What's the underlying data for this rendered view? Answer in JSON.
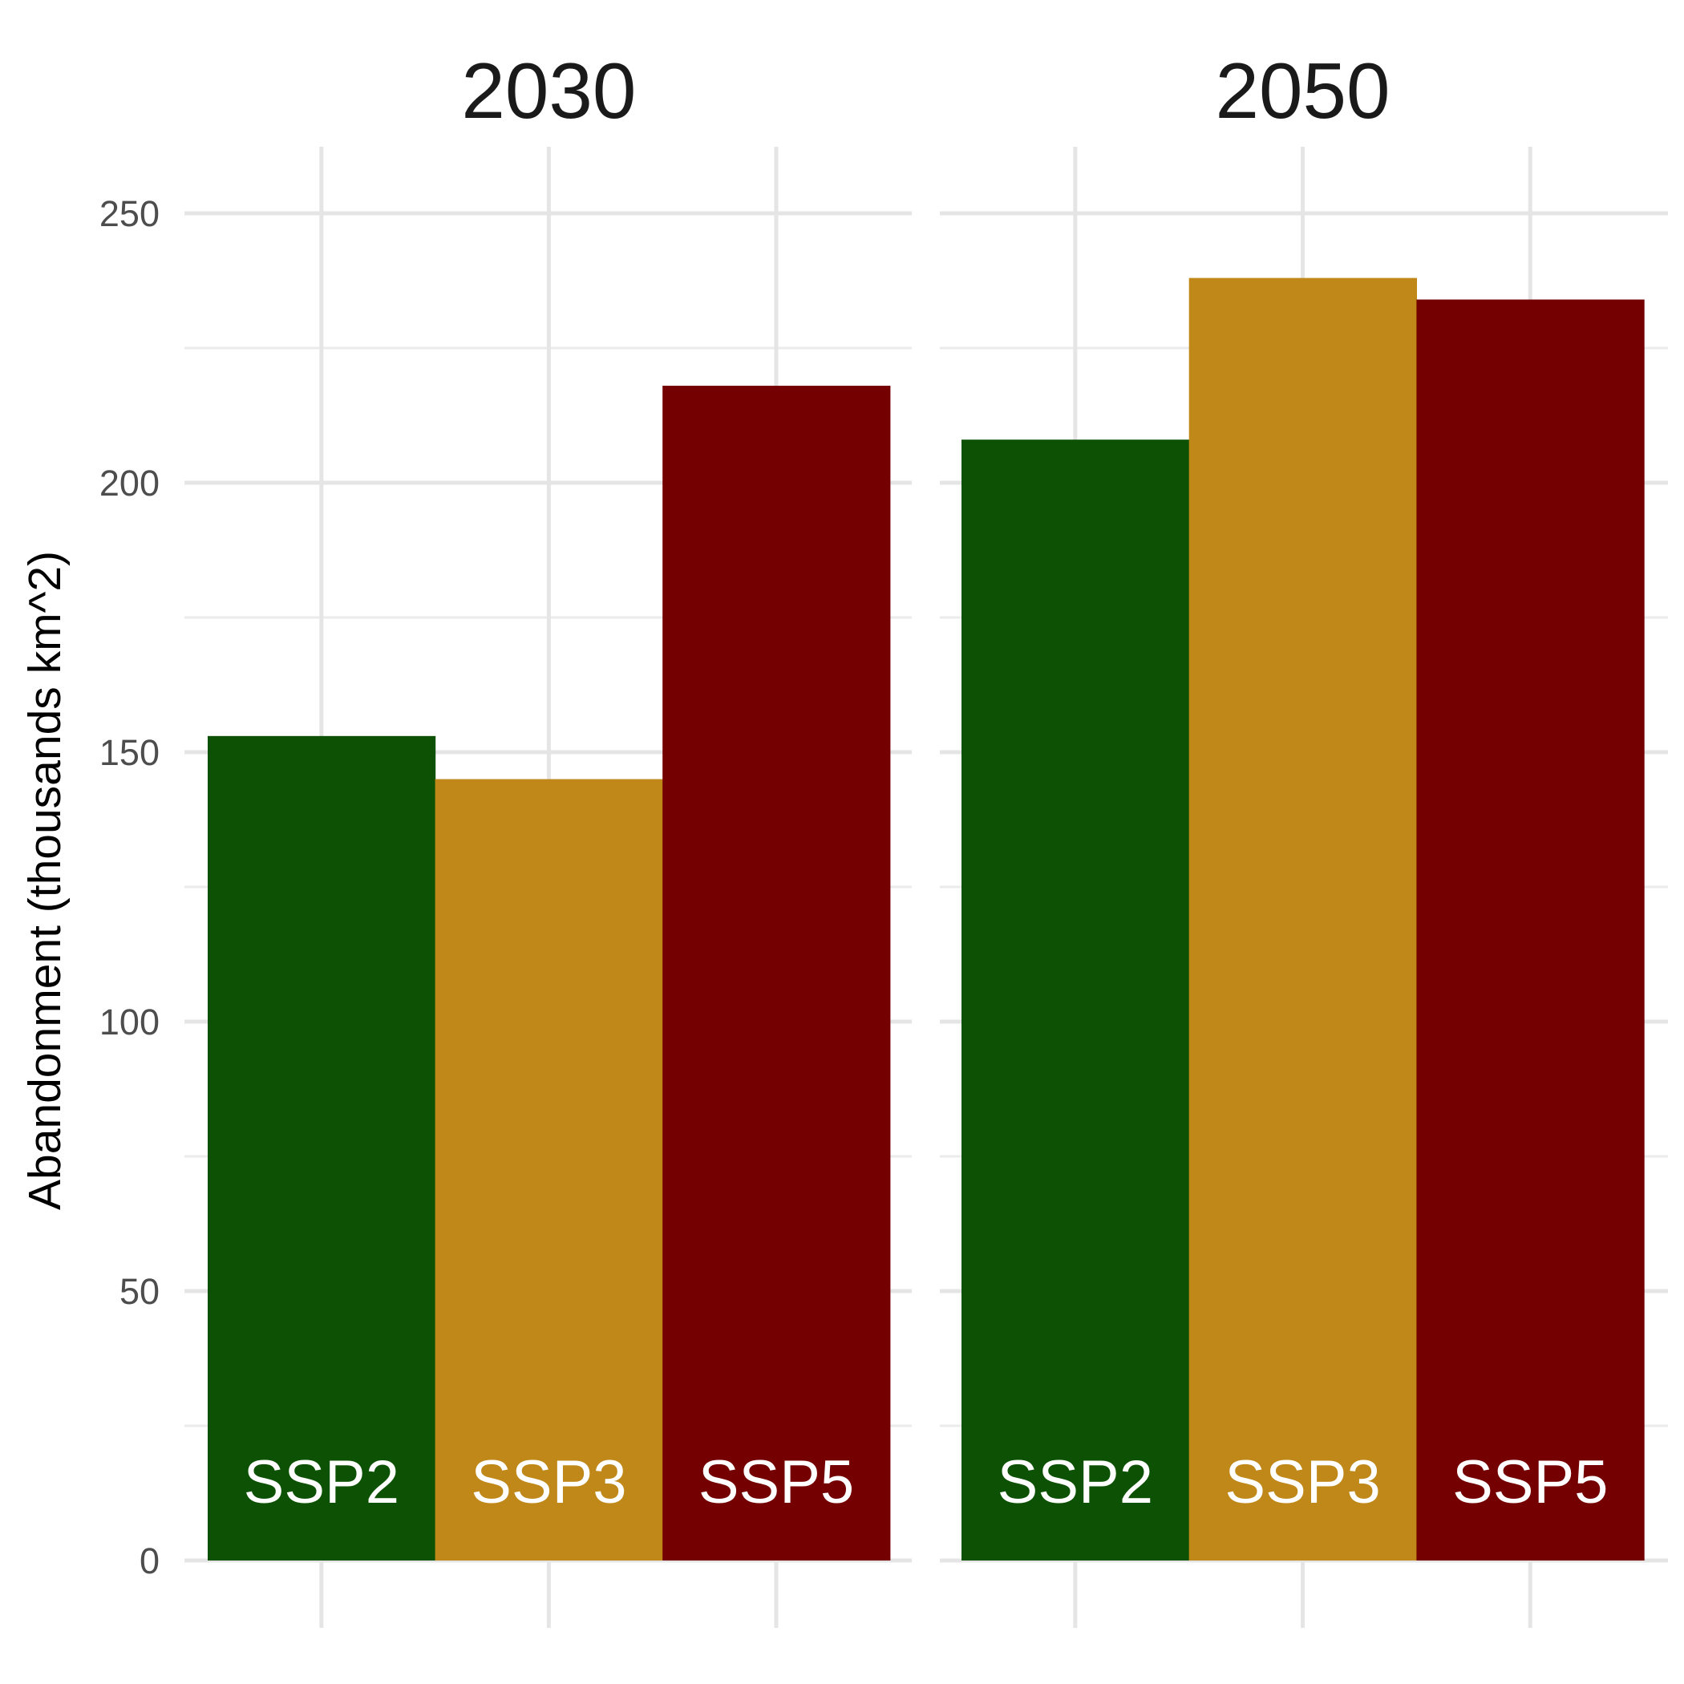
{
  "chart_data": {
    "type": "bar",
    "ylabel": "Abandonment (thousands km^2)",
    "ylim": [
      0,
      260
    ],
    "y_ticks": [
      0,
      50,
      100,
      150,
      200,
      250
    ],
    "grid": true,
    "legend": "none",
    "categories": [
      "SSP2",
      "SSP3",
      "SSP5"
    ],
    "colors": {
      "SSP2": "#0d5204",
      "SSP3": "#bf8818",
      "SSP5": "#740002"
    },
    "label_color": "#ffffff",
    "facets": [
      {
        "title": "2030",
        "values": [
          153,
          145,
          218
        ]
      },
      {
        "title": "2050",
        "values": [
          208,
          238,
          234
        ]
      }
    ]
  }
}
